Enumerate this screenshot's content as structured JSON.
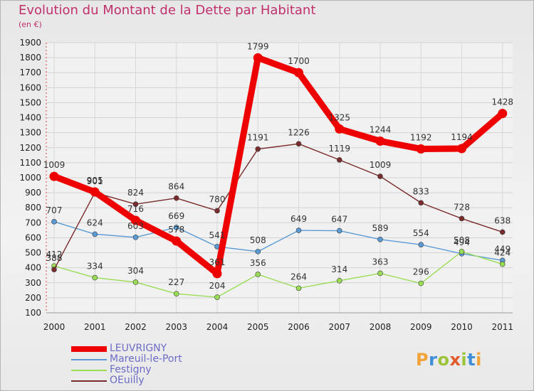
{
  "title": "Evolution du Montant de la Dette par Habitant",
  "subtitle": "(en €)",
  "logo": {
    "text": "Proxiti",
    "colors": [
      "#f2a33a",
      "#3f8fd8",
      "#9cc43b",
      "#e15b2c",
      "#9cc43b",
      "#3f8fd8",
      "#f2a33a"
    ]
  },
  "chart_data": {
    "type": "line",
    "x": [
      "2000",
      "2001",
      "2002",
      "2003",
      "2004",
      "2005",
      "2006",
      "2007",
      "2008",
      "2009",
      "2010",
      "2011"
    ],
    "ylim": [
      100,
      1900
    ],
    "yticks": [
      "100",
      "200",
      "300",
      "400",
      "500",
      "600",
      "700",
      "800",
      "900",
      "1000",
      "1100",
      "1200",
      "1300",
      "1400",
      "1500",
      "1600",
      "1700",
      "1800",
      "1900"
    ],
    "grid": true,
    "legend_position": "bottom-left",
    "series": [
      {
        "name": "LEUVRIGNY",
        "color": "#ee0000",
        "values": [
          1009,
          905,
          716,
          578,
          361,
          1799,
          1700,
          1325,
          1244,
          1192,
          1194,
          1428
        ]
      },
      {
        "name": "Mareuil-le-Port",
        "color": "#5b9bd5",
        "values": [
          707,
          624,
          603,
          669,
          541,
          508,
          649,
          647,
          589,
          554,
          494,
          449
        ]
      },
      {
        "name": "Festigny",
        "color": "#99dd55",
        "values": [
          412,
          334,
          304,
          227,
          204,
          356,
          264,
          314,
          363,
          296,
          508,
          424
        ]
      },
      {
        "name": "OEuilly",
        "color": "#7a2c2c",
        "values": [
          388,
          901,
          824,
          864,
          780,
          1191,
          1226,
          1119,
          1009,
          833,
          728,
          638
        ]
      }
    ]
  }
}
